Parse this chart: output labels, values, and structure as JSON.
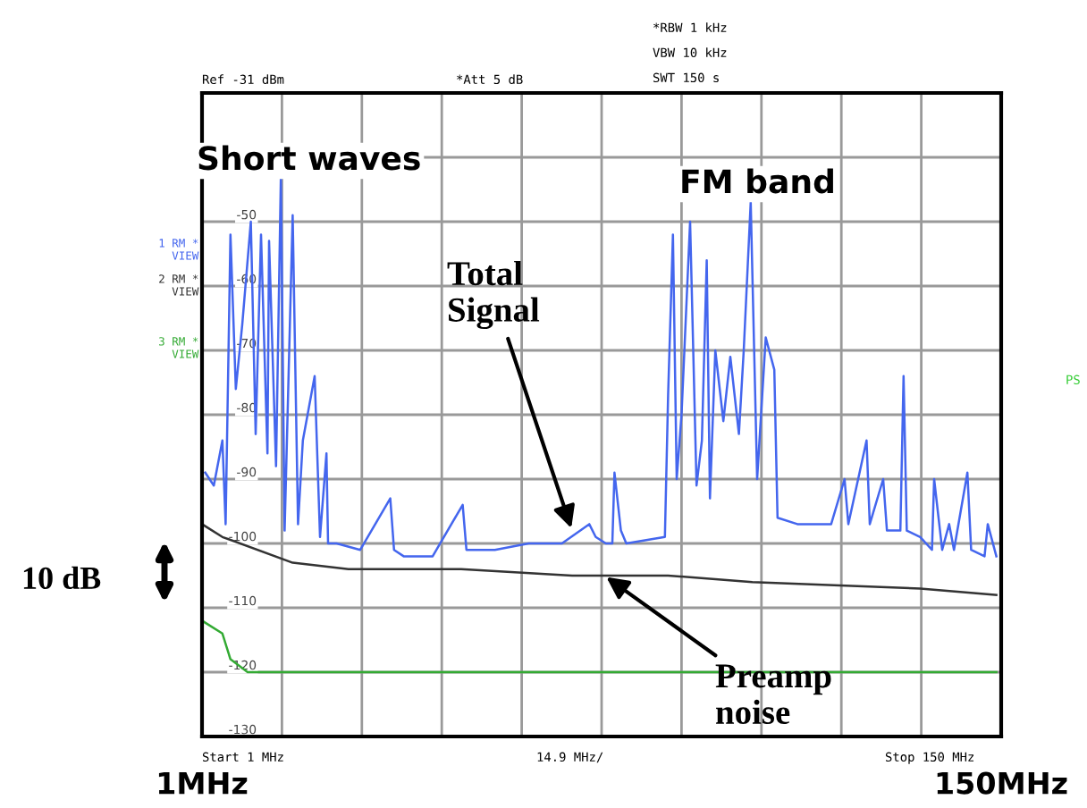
{
  "chart_data": {
    "type": "line",
    "x": [
      1.6,
      3.2,
      4.8,
      5.4,
      6.3,
      7.3,
      8.5,
      10.1,
      11.0,
      12.0,
      13.2,
      13.5,
      14.8,
      15.7,
      16.4,
      17.9,
      18.9,
      19.8,
      22.0,
      23.0,
      24.2,
      24.5,
      26.1,
      30.5,
      36.1,
      36.8,
      38.6,
      44.0,
      49.6,
      50.3,
      55.6,
      61.9,
      68.1,
      73.2,
      74.4,
      76.3,
      77.5,
      77.9,
      79.1,
      80.1,
      87.3,
      87.9,
      88.8,
      89.5,
      90.4,
      92.0,
      93.2,
      94.2,
      95.1,
      95.7,
      96.7,
      98.2,
      99.5,
      101.1,
      102.0,
      103.3,
      104.5,
      106.1,
      107.7,
      108.3,
      112.0,
      118.3,
      120.8,
      121.5,
      124.9,
      125.5,
      128.0,
      128.7,
      131.2,
      131.8,
      132.4,
      134.9,
      137.1,
      137.5,
      139.0,
      140.3,
      141.2,
      143.7,
      144.4,
      146.9,
      147.5,
      149.1
    ],
    "series": [
      {
        "name": "1 RM *\nVIEW",
        "color": "#4466ee",
        "values": [
          -89,
          -91,
          -84,
          -97,
          -52,
          -76,
          -66,
          -50,
          -83,
          -52,
          -86,
          -53,
          -88,
          -43,
          -98,
          -49,
          -97,
          -84,
          -74,
          -99,
          -86,
          -100,
          -100,
          -101,
          -93,
          -101,
          -102,
          -102,
          -94,
          -101,
          -101,
          -100,
          -100,
          -97,
          -99,
          -100,
          -100,
          -89,
          -98,
          -100,
          -99,
          -77,
          -52,
          -90,
          -80,
          -50,
          -91,
          -84,
          -56,
          -93,
          -70,
          -81,
          -71,
          -83,
          -70,
          -47,
          -90,
          -68,
          -73,
          -96,
          -97,
          -97,
          -90,
          -97,
          -84,
          -97,
          -90,
          -98,
          -98,
          -74,
          -98,
          -99,
          -101,
          -90,
          -101,
          -97,
          -101,
          -89,
          -101,
          -102,
          -97,
          -102
        ]
      },
      {
        "name": "2 RM *\nVIEW",
        "color": "#333333",
        "x": [
          1.0,
          4.8,
          17.9,
          28.3,
          49.3,
          70.0,
          87.9,
          103.6,
          134.9,
          149.1
        ],
        "values": [
          -97,
          -99,
          -103,
          -104,
          -104,
          -105,
          -105,
          -106,
          -107,
          -108
        ]
      },
      {
        "name": "3 RM *\nVIEW",
        "color": "#33aa33",
        "x": [
          1.0,
          4.8,
          6.3,
          9.5,
          50.0,
          100.0,
          149.1
        ],
        "values": [
          -112,
          -114,
          -118,
          -120,
          -120,
          -120,
          -120
        ]
      }
    ],
    "xlim": [
      1,
      150
    ],
    "xticks": [
      {
        "value": 1,
        "label": "1MHz"
      },
      {
        "value": 15.9,
        "label": null
      },
      {
        "value": 30.8,
        "label": null
      },
      {
        "value": 45.7,
        "label": null
      },
      {
        "value": 60.6,
        "label": null
      },
      {
        "value": 75.5,
        "label": null
      },
      {
        "value": 90.4,
        "label": null
      },
      {
        "value": 105.3,
        "label": null
      },
      {
        "value": 120.2,
        "label": null
      },
      {
        "value": 135.1,
        "label": null
      },
      {
        "value": 150,
        "label": "150MHz"
      }
    ],
    "ylim": [
      -130,
      -30
    ],
    "yticks": [
      {
        "value": -40,
        "label": null
      },
      -50,
      -60,
      -70,
      -80,
      -90,
      -100,
      -110,
      -120,
      -130
    ],
    "grid": true,
    "line_style": "solid",
    "marker": "none",
    "annotations": [
      "Ref -31 dBm",
      "*Att 5 dB",
      "*RBW 1 kHz",
      "VBW 10 kHz",
      "SWT 150 s",
      "Short waves",
      "FM band",
      {
        "text": "Total\nSignal",
        "x": 70,
        "y": -98
      },
      {
        "text": "Preamp\nnoise",
        "x": 76,
        "y": -105
      },
      "10 dB",
      "Start 1 MHz",
      "14.9 MHz/",
      "Stop 150 MHz",
      "PS"
    ]
  }
}
